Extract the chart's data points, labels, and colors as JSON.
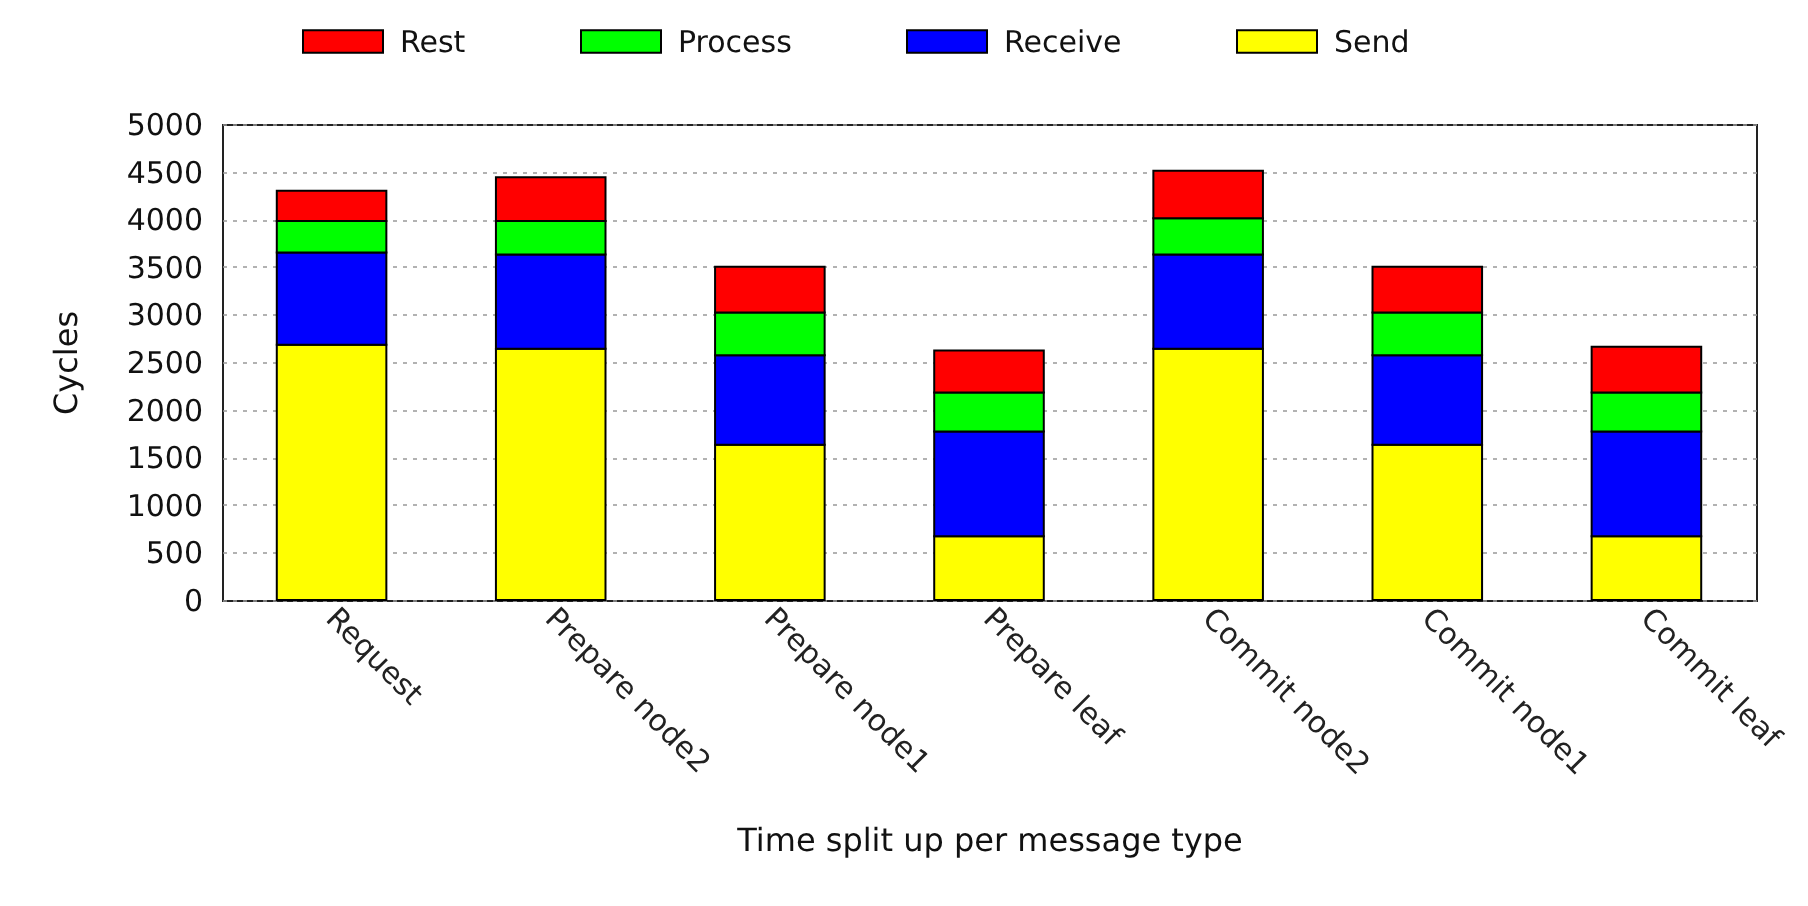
{
  "chart_data": {
    "type": "bar",
    "xlabel": "Time split up per message type",
    "ylabel": "Cycles",
    "categories": [
      "Request",
      "Prepare node2",
      "Prepare node1",
      "Prepare leaf",
      "Commit node2",
      "Commit node1",
      "Commit leaf"
    ],
    "series": [
      {
        "name": "Send",
        "color": "#ffff00",
        "values": [
          2680,
          2640,
          1630,
          670,
          2640,
          1630,
          670
        ]
      },
      {
        "name": "Receive",
        "color": "#0000ff",
        "values": [
          970,
          990,
          940,
          1100,
          990,
          940,
          1100
        ]
      },
      {
        "name": "Process",
        "color": "#00ff00",
        "values": [
          330,
          350,
          450,
          410,
          380,
          450,
          410
        ]
      },
      {
        "name": "Rest",
        "color": "#ff0000",
        "values": [
          320,
          460,
          480,
          440,
          500,
          480,
          480
        ]
      }
    ],
    "stacked": true,
    "ylim": [
      0,
      5000
    ],
    "yticks": [
      0,
      500,
      1000,
      1500,
      2000,
      2500,
      3000,
      3500,
      4000,
      4500,
      5000
    ],
    "grid": "y",
    "legend": "top"
  }
}
